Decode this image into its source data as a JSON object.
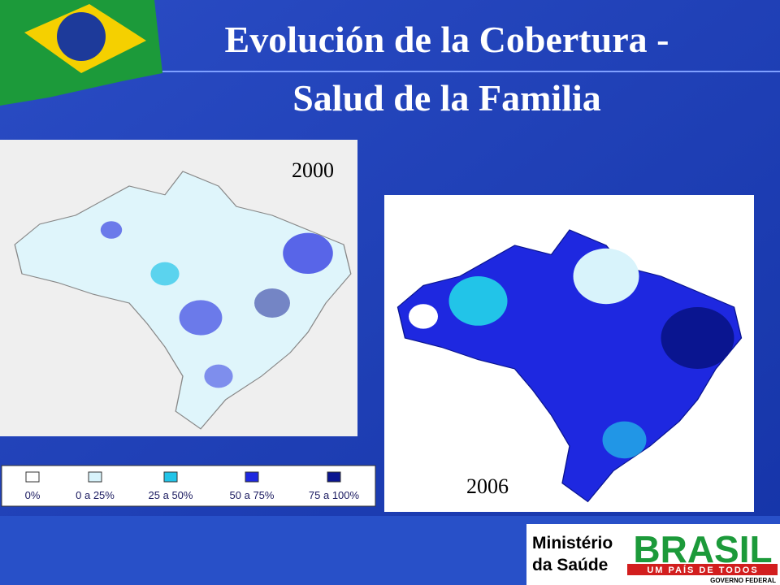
{
  "header": {
    "title_line1": "Evolución de la Cobertura -",
    "title_line2": "Salud de la Familia"
  },
  "maps": [
    {
      "year": "2000"
    },
    {
      "year": "2006"
    }
  ],
  "legend": [
    {
      "label": "0%",
      "color": "#ffffff"
    },
    {
      "label": "0 a 25%",
      "color": "#d8f3fb"
    },
    {
      "label": "25 a 50%",
      "color": "#22c4e8"
    },
    {
      "label": "50 a 75%",
      "color": "#1e28e0"
    },
    {
      "label": "75 a 100%",
      "color": "#0a1590"
    }
  ],
  "logo": {
    "ministry_line1": "Ministério",
    "ministry_line2": "da Saúde",
    "brand": "BRASIL",
    "slogan": "UM PAÍS DE TODOS",
    "government": "GOVERNO FEDERAL"
  }
}
